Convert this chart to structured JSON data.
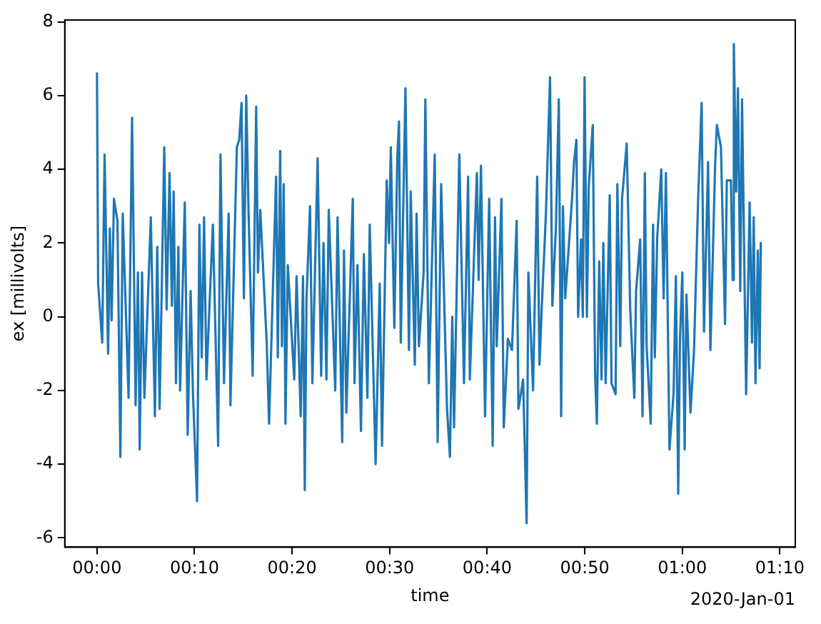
{
  "chart_data": {
    "type": "line",
    "xlabel": "time",
    "ylabel": "ex [millivolts]",
    "annotations": [
      "2020-Jan-01"
    ],
    "xlim": [
      -0.055,
      1.193
    ],
    "ylim": [
      -6.25,
      8.05
    ],
    "xticks": [
      {
        "value": 0,
        "label": "00:00"
      },
      {
        "value": 0.16667,
        "label": "00:10"
      },
      {
        "value": 0.33333,
        "label": "00:20"
      },
      {
        "value": 0.5,
        "label": "00:30"
      },
      {
        "value": 0.66667,
        "label": "00:40"
      },
      {
        "value": 0.83333,
        "label": "00:50"
      },
      {
        "value": 1,
        "label": "01:00"
      },
      {
        "value": 1.16667,
        "label": "01:10"
      }
    ],
    "yticks": [
      -6,
      -4,
      -2,
      0,
      2,
      4,
      6,
      8
    ],
    "grid": false,
    "legend": false,
    "marker": "none",
    "line_style": "solid",
    "x": [
      0,
      0.002,
      0.009,
      0.013,
      0.019,
      0.022,
      0.025,
      0.029,
      0.035,
      0.04,
      0.044,
      0.054,
      0.06,
      0.066,
      0.07,
      0.073,
      0.077,
      0.081,
      0.092,
      0.099,
      0.103,
      0.107,
      0.115,
      0.119,
      0.124,
      0.128,
      0.131,
      0.135,
      0.139,
      0.142,
      0.15,
      0.155,
      0.16,
      0.164,
      0.171,
      0.175,
      0.179,
      0.183,
      0.187,
      0.198,
      0.207,
      0.211,
      0.217,
      0.225,
      0.228,
      0.239,
      0.243,
      0.247,
      0.251,
      0.255,
      0.259,
      0.266,
      0.272,
      0.275,
      0.279,
      0.29,
      0.294,
      0.306,
      0.309,
      0.313,
      0.316,
      0.319,
      0.322,
      0.326,
      0.337,
      0.341,
      0.348,
      0.352,
      0.355,
      0.358,
      0.364,
      0.368,
      0.377,
      0.383,
      0.387,
      0.392,
      0.396,
      0.407,
      0.411,
      0.419,
      0.422,
      0.426,
      0.437,
      0.44,
      0.445,
      0.451,
      0.456,
      0.462,
      0.466,
      0.476,
      0.483,
      0.487,
      0.495,
      0.499,
      0.502,
      0.508,
      0.513,
      0.516,
      0.519,
      0.527,
      0.533,
      0.536,
      0.543,
      0.546,
      0.55,
      0.558,
      0.561,
      0.567,
      0.577,
      0.582,
      0.588,
      0.598,
      0.603,
      0.607,
      0.61,
      0.619,
      0.627,
      0.634,
      0.637,
      0.649,
      0.652,
      0.656,
      0.663,
      0.67,
      0.676,
      0.68,
      0.683,
      0.691,
      0.695,
      0.702,
      0.709,
      0.717,
      0.72,
      0.728,
      0.734,
      0.737,
      0.745,
      0.752,
      0.756,
      0.76,
      0.767,
      0.774,
      0.778,
      0.784,
      0.789,
      0.793,
      0.796,
      0.8,
      0.812,
      0.815,
      0.819,
      0.822,
      0.827,
      0.83,
      0.833,
      0.837,
      0.84,
      0.847,
      0.851,
      0.854,
      0.858,
      0.862,
      0.865,
      0.869,
      0.876,
      0.879,
      0.886,
      0.889,
      0.894,
      0.897,
      0.905,
      0.911,
      0.918,
      0.921,
      0.928,
      0.932,
      0.936,
      0.939,
      0.946,
      0.95,
      0.953,
      0.957,
      0.964,
      0.968,
      0.972,
      0.978,
      0.985,
      0.989,
      0.993,
      0.996,
      1,
      1.004,
      1.007,
      1.014,
      1.02,
      1.027,
      1.033,
      1.037,
      1.044,
      1.048,
      1.056,
      1.059,
      1.066,
      1.073,
      1.076,
      1.083,
      1.086,
      1.088,
      1.092,
      1.095,
      1.099,
      1.102,
      1.109,
      1.115,
      1.119,
      1.122,
      1.125,
      1.129,
      1.132,
      1.134
    ],
    "series": [
      {
        "color": "#1f77b4",
        "values": [
          6.6,
          0.9,
          -0.7,
          4.4,
          -1.0,
          2.4,
          -0.1,
          3.2,
          2.6,
          -3.8,
          2.8,
          -2.2,
          5.4,
          -2.4,
          1.2,
          -3.6,
          1.2,
          -2.2,
          2.7,
          -2.7,
          1.9,
          -2.5,
          4.6,
          0.2,
          3.9,
          0.3,
          3.4,
          -1.8,
          1.9,
          -2.0,
          3.1,
          -3.2,
          0.7,
          -2.1,
          -5.0,
          2.5,
          -1.1,
          2.7,
          -1.7,
          2.5,
          -3.5,
          4.4,
          -1.8,
          2.8,
          -2.4,
          4.6,
          4.8,
          5.8,
          0.5,
          6.0,
          2.8,
          -1.6,
          5.7,
          1.2,
          2.9,
          -0.7,
          -2.9,
          3.8,
          -1.1,
          4.5,
          -0.8,
          3.6,
          -2.9,
          1.4,
          -1.7,
          1.1,
          -2.7,
          1.1,
          -4.7,
          0.5,
          3.0,
          -1.8,
          4.3,
          -1.6,
          2.0,
          -1.7,
          2.9,
          -2.0,
          2.7,
          -3.4,
          1.8,
          -2.6,
          3.2,
          -1.8,
          1.4,
          -3.1,
          1.7,
          -2.2,
          2.5,
          -4.0,
          0.9,
          -3.5,
          3.7,
          2.0,
          4.6,
          -0.3,
          4.3,
          5.3,
          -0.7,
          6.2,
          -0.9,
          3.4,
          -1.3,
          2.8,
          -0.8,
          1.2,
          5.9,
          -1.8,
          4.4,
          -3.4,
          3.6,
          -2.5,
          -3.8,
          0.0,
          -3.0,
          4.4,
          -1.8,
          3.8,
          -1.7,
          3.9,
          1.0,
          4.1,
          -2.7,
          3.2,
          -3.5,
          2.7,
          -0.8,
          3.2,
          -3.0,
          -0.6,
          -0.9,
          2.6,
          -2.5,
          -1.7,
          -5.6,
          1.2,
          -2.0,
          3.8,
          -1.3,
          0.3,
          2.8,
          6.5,
          0.3,
          2.4,
          5.9,
          -2.7,
          3.0,
          0.5,
          3.3,
          4.2,
          4.8,
          0.0,
          2.1,
          0.0,
          6.5,
          0.0,
          3.5,
          5.2,
          -1.6,
          -2.9,
          1.5,
          -1.7,
          2.0,
          -1.8,
          3.3,
          -1.8,
          -2.1,
          3.6,
          -0.8,
          3.2,
          4.7,
          0.2,
          -2.2,
          0.7,
          2.1,
          -2.7,
          3.9,
          -0.8,
          -2.9,
          2.5,
          -1.1,
          2.1,
          4.0,
          0.5,
          3.9,
          -3.6,
          -2.1,
          1.1,
          -4.8,
          -0.6,
          1.2,
          -3.6,
          0.6,
          -2.6,
          -0.9,
          3.2,
          5.8,
          -0.4,
          4.2,
          -0.9,
          4.1,
          5.2,
          4.6,
          -0.2,
          3.7,
          3.7,
          1.0,
          7.4,
          3.4,
          6.2,
          0.7,
          5.9,
          -2.1,
          3.1,
          -0.7,
          2.7,
          -1.8,
          1.8,
          -1.4,
          2.0
        ]
      }
    ]
  }
}
